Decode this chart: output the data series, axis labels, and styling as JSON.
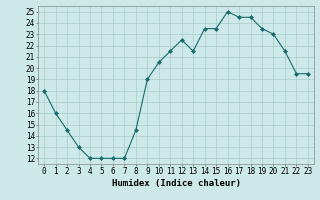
{
  "x": [
    0,
    1,
    2,
    3,
    4,
    5,
    6,
    7,
    8,
    9,
    10,
    11,
    12,
    13,
    14,
    15,
    16,
    17,
    18,
    19,
    20,
    21,
    22,
    23
  ],
  "y": [
    18,
    16,
    14.5,
    13,
    12,
    12,
    12,
    12,
    14.5,
    19,
    20.5,
    21.5,
    22.5,
    21.5,
    23.5,
    23.5,
    25,
    24.5,
    24.5,
    23.5,
    23,
    21.5,
    19.5,
    19.5
  ],
  "line_color": "#1a6b6b",
  "marker": "D",
  "marker_size": 2,
  "bg_color": "#cce8e8",
  "grid_color": "#aacccc",
  "xlabel": "Humidex (Indice chaleur)",
  "xlim": [
    -0.5,
    23.5
  ],
  "ylim": [
    11.5,
    25.5
  ],
  "yticks": [
    12,
    13,
    14,
    15,
    16,
    17,
    18,
    19,
    20,
    21,
    22,
    23,
    24,
    25
  ],
  "xticks": [
    0,
    1,
    2,
    3,
    4,
    5,
    6,
    7,
    8,
    9,
    10,
    11,
    12,
    13,
    14,
    15,
    16,
    17,
    18,
    19,
    20,
    21,
    22,
    23
  ],
  "tick_fontsize": 5.5,
  "xlabel_fontsize": 6.5
}
